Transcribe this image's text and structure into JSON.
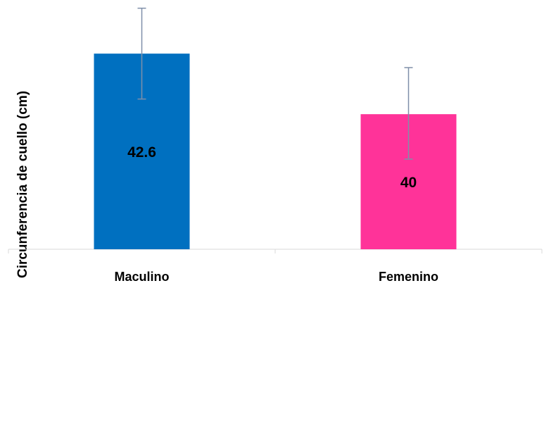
{
  "chart_data": {
    "type": "bar",
    "title": "",
    "xlabel": "",
    "ylabel": "Circunferencia de cuello (cm)",
    "categories": [
      "Maculino",
      "Femenino"
    ],
    "values": [
      42.6,
      40
    ],
    "data_labels": [
      "42.6",
      "40"
    ],
    "error": [
      {
        "upper": 44.55,
        "lower": 40.65
      },
      {
        "upper": 42.0,
        "lower": 38.07
      }
    ],
    "colors": [
      "#0070C0",
      "#FF3399"
    ],
    "error_bar_color": "#7F8FA9",
    "grid": false,
    "legend": "none",
    "y_axis_visible": false,
    "ylim": [
      34.2,
      44.6
    ]
  }
}
